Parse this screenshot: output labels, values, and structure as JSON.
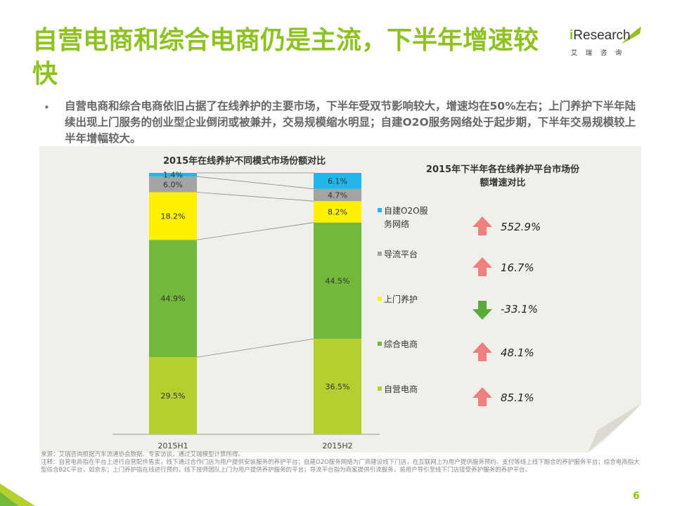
{
  "slide": {
    "title": "自营电商和综合电商仍是主流，下半年增速较快",
    "bullet": "自营电商和综合电商依旧占据了在线养护的主要市场，下半年受双节影响较大，增速均在50%左右；上门养护下半年陆续出现上门服务的创业型企业倒闭或被兼并，交易规模缩水明显；自建O2O服务网络处于起步期，下半年交易规模较上半年增幅较大。",
    "page_number": "6",
    "footer_source": "来源：艾瑞咨询根据汽车流通协会数据、专家访谈，通过艾瑞模型计算所得。",
    "footer_note": "注释：自营电商指在平台上进行自营配件售卖，线下通过合作门店为用户提供安装服务的养护平台；自建O2O服务网络为厂商建设线下门店，在互联网上为用户提供服务预约、支付等线上线下融合的养护服务平台；综合电商指大型综合B2C平台，如京东；上门养护指在线进行预约，线下技师团队上门为用户提供养护服务的平台；导流平台指为商家提供引流服务，将用户导引至线下门店接受养护服务的养护平台。"
  },
  "logo": {
    "brand_i": "i",
    "brand_rest": "Research",
    "sub": "艾瑞咨询"
  },
  "colors": {
    "title_green": "#8dc21f",
    "自营电商": "#b5cf2e",
    "综合电商": "#72b83c",
    "上门养护": "#fff100",
    "导流平台": "#a3a3a3",
    "自建O2O服务网络": "#21b5e8",
    "up_arrow": "#f08080",
    "down_arrow": "#5aab3b"
  },
  "chart_data": [
    {
      "type": "bar",
      "stacked": true,
      "title": "2015年在线养护不同模式市场份额对比",
      "categories": [
        "2015H1",
        "2015H2"
      ],
      "ylim": [
        0,
        100
      ],
      "series": [
        {
          "name": "自营电商",
          "values": [
            29.5,
            36.5
          ],
          "labels": [
            "29.5%",
            "36.5%"
          ]
        },
        {
          "name": "综合电商",
          "values": [
            44.9,
            44.5
          ],
          "labels": [
            "44.9%",
            "44.5%"
          ]
        },
        {
          "name": "上门养护",
          "values": [
            18.2,
            8.2
          ],
          "labels": [
            "18.2%",
            "8.2%"
          ]
        },
        {
          "name": "导流平台",
          "values": [
            6.0,
            4.7
          ],
          "labels": [
            "6.0%",
            "4.7%"
          ]
        },
        {
          "name": "自建O2O服务网络",
          "values": [
            1.4,
            6.1
          ],
          "labels": [
            "1.4%",
            "6.1%"
          ]
        }
      ],
      "legend": {
        "position": "right",
        "items": [
          {
            "label_line1": "自建O2O服",
            "label_line2": "务网络"
          },
          {
            "label_line1": "导流平台"
          },
          {
            "label_line1": "上门养护"
          },
          {
            "label_line1": "综合电商"
          },
          {
            "label_line1": "自营电商"
          }
        ]
      }
    },
    {
      "type": "table",
      "title": "2015年下半年各在线养护平台市场份额增速对比",
      "rows": [
        {
          "series": "自建O2O服务网络",
          "value": 552.9,
          "label": "552.9%",
          "direction": "up"
        },
        {
          "series": "导流平台",
          "value": 16.7,
          "label": "16.7%",
          "direction": "up"
        },
        {
          "series": "上门养护",
          "value": -33.1,
          "label": "-33.1%",
          "direction": "down"
        },
        {
          "series": "综合电商",
          "value": 48.1,
          "label": "48.1%",
          "direction": "up"
        },
        {
          "series": "自营电商",
          "value": 85.1,
          "label": "85.1%",
          "direction": "up"
        }
      ]
    }
  ]
}
